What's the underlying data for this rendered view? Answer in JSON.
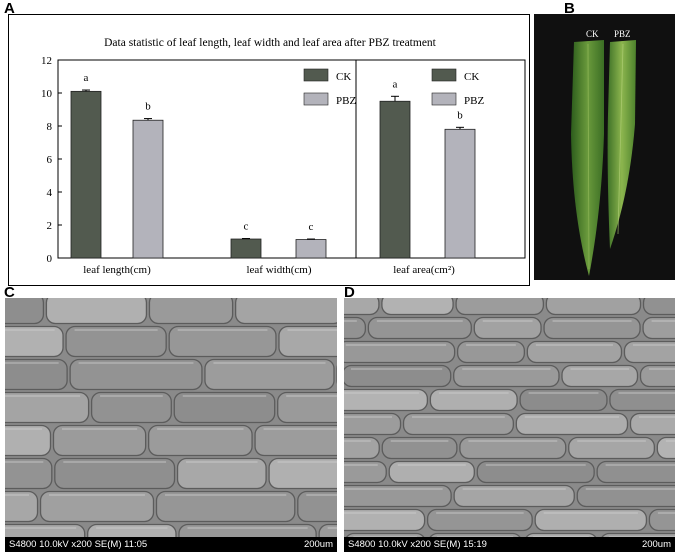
{
  "panels": {
    "A": "A",
    "B": "B",
    "C": "C",
    "D": "D"
  },
  "chart_data": {
    "type": "bar",
    "title": "Data statistic of leaf length, leaf width and leaf area after PBZ treatment",
    "categories": [
      "leaf length(cm)",
      "leaf width(cm)",
      "leaf area(cm²)"
    ],
    "series": [
      {
        "name": "CK",
        "values": [
          10.1,
          1.15,
          9.5
        ],
        "errors": [
          0.08,
          0.03,
          0.3
        ],
        "letters": [
          "a",
          "c",
          "a"
        ],
        "color": "#525a4f"
      },
      {
        "name": "PBZ",
        "values": [
          8.35,
          1.12,
          7.8
        ],
        "errors": [
          0.1,
          0.03,
          0.12
        ],
        "letters": [
          "b",
          "c",
          "b"
        ],
        "color": "#b3b3bb"
      }
    ],
    "ylim": [
      0,
      12
    ],
    "yticks": [
      "0",
      "2",
      "4",
      "6",
      "8",
      "10",
      "12"
    ],
    "legend": "top-right",
    "grid": false
  },
  "photo": {
    "labels": [
      "CK",
      "PBZ"
    ]
  },
  "sem": {
    "C": {
      "info": "S4800 10.0kV x200 SE(M) 11:05",
      "scale": "200um"
    },
    "D": {
      "info": "S4800 10.0kV x200 SE(M) 15:19",
      "scale": "200um"
    }
  }
}
